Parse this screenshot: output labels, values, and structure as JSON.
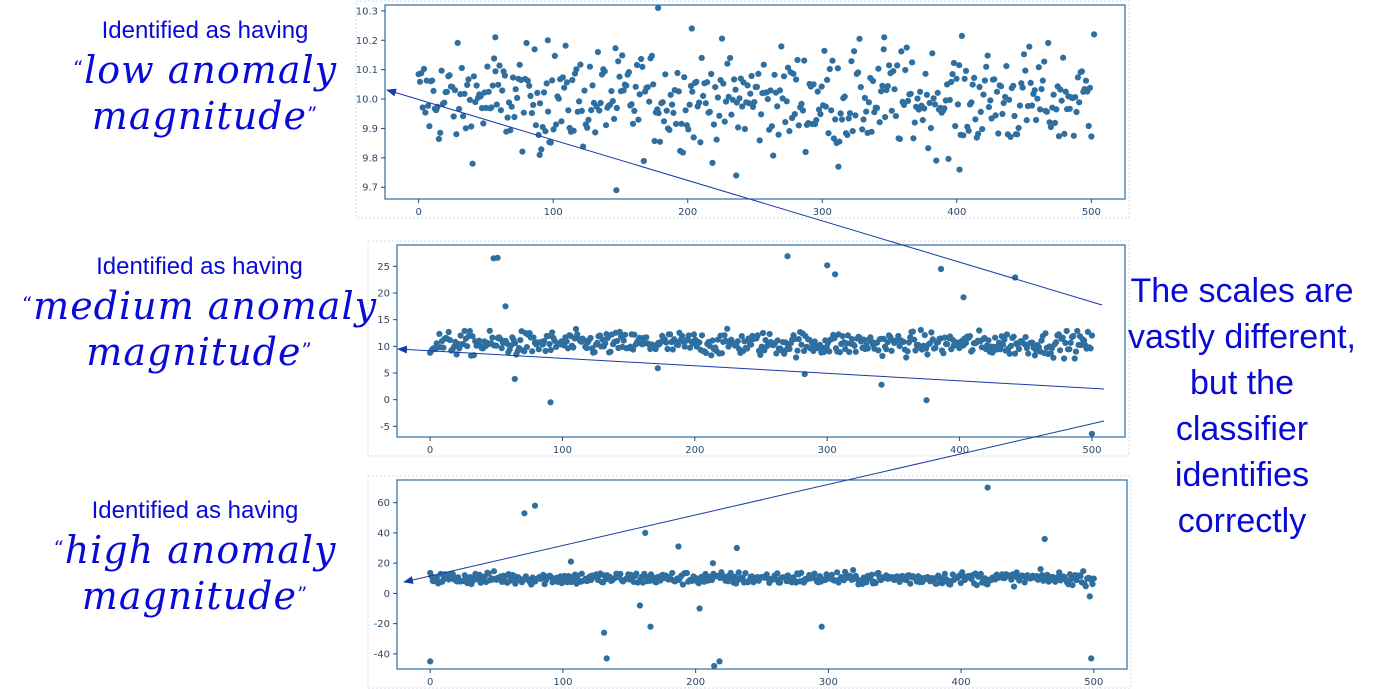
{
  "labels": [
    {
      "prefix": "Identified as having",
      "line1": "low anomaly",
      "line2": "magnitude"
    },
    {
      "prefix": "Identified as having",
      "line1": "medium anomaly",
      "line2": "magnitude"
    },
    {
      "prefix": "Identified as having",
      "line1": "high anomaly",
      "line2": "magnitude"
    }
  ],
  "caption": [
    "The scales are",
    "vastly different,",
    "but the",
    "classifier",
    "identifies",
    "correctly"
  ],
  "colors": {
    "points": "#2f6fa0",
    "frame": "#2f6fa0",
    "annotation": "#0a0ad6",
    "arrow": "#1a3aa8"
  },
  "chart_data": [
    {
      "type": "scatter",
      "title": "",
      "xlabel": "",
      "ylabel": "",
      "xlim": [
        -25,
        525
      ],
      "ylim": [
        9.66,
        10.32
      ],
      "xticks": [
        0,
        100,
        200,
        300,
        400,
        500
      ],
      "yticks": [
        9.7,
        9.8,
        9.9,
        10.0,
        10.1,
        10.2,
        10.3
      ],
      "ytick_labels": [
        "9.7",
        "9.8",
        "9.9",
        "10.0",
        "10.1",
        "10.2",
        "10.3"
      ],
      "n_points": 500,
      "base": 10.0,
      "spread": 0.12,
      "outliers": [
        [
          178,
          10.31
        ],
        [
          147,
          9.69
        ],
        [
          236,
          9.74
        ],
        [
          203,
          10.24
        ],
        [
          402,
          9.76
        ],
        [
          346,
          10.21
        ],
        [
          57,
          10.21
        ],
        [
          96,
          10.2
        ],
        [
          502,
          10.22
        ],
        [
          312,
          9.77
        ],
        [
          90,
          9.81
        ]
      ]
    },
    {
      "type": "scatter",
      "title": "",
      "xlabel": "",
      "ylabel": "",
      "xlim": [
        -25,
        525
      ],
      "ylim": [
        -7,
        29
      ],
      "xticks": [
        0,
        100,
        200,
        300,
        400,
        500
      ],
      "yticks": [
        -5,
        0,
        5,
        10,
        15,
        20,
        25
      ],
      "ytick_labels": [
        "-5",
        "0",
        "5",
        "10",
        "15",
        "20",
        "25"
      ],
      "n_points": 500,
      "base": 10.5,
      "spread": 1.6,
      "outliers": [
        [
          48,
          26.5
        ],
        [
          51,
          26.6
        ],
        [
          270,
          26.9
        ],
        [
          300,
          25.2
        ],
        [
          306,
          23.5
        ],
        [
          386,
          24.5
        ],
        [
          442,
          22.9
        ],
        [
          403,
          19.2
        ],
        [
          57,
          17.5
        ],
        [
          91,
          -0.5
        ],
        [
          375,
          -0.1
        ],
        [
          500,
          -6.4
        ],
        [
          64,
          3.9
        ],
        [
          341,
          2.8
        ],
        [
          283,
          4.8
        ],
        [
          172,
          5.9
        ]
      ]
    },
    {
      "type": "scatter",
      "title": "",
      "xlabel": "",
      "ylabel": "",
      "xlim": [
        -25,
        525
      ],
      "ylim": [
        -50,
        75
      ],
      "xticks": [
        0,
        100,
        200,
        300,
        400,
        500
      ],
      "yticks": [
        -40,
        -20,
        0,
        20,
        40,
        60
      ],
      "ytick_labels": [
        "-40",
        "-20",
        "0",
        "20",
        "40",
        "60"
      ],
      "n_points": 500,
      "base": 10,
      "spread": 3,
      "outliers": [
        [
          420,
          70
        ],
        [
          79,
          58
        ],
        [
          71,
          53
        ],
        [
          162,
          40
        ],
        [
          463,
          36
        ],
        [
          187,
          31
        ],
        [
          231,
          30
        ],
        [
          0,
          -45
        ],
        [
          133,
          -43
        ],
        [
          218,
          -45
        ],
        [
          214,
          -48
        ],
        [
          131,
          -26
        ],
        [
          295,
          -22
        ],
        [
          166,
          -22
        ],
        [
          203,
          -10
        ],
        [
          158,
          -8
        ],
        [
          498,
          -43
        ],
        [
          497,
          -2
        ],
        [
          106,
          21
        ],
        [
          213,
          20
        ]
      ]
    }
  ]
}
